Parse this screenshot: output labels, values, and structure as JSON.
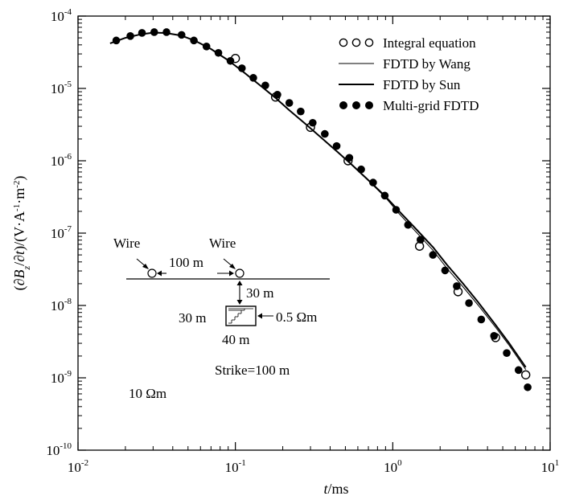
{
  "chart_data": {
    "type": "line",
    "xlabel": {
      "var": "t",
      "unit": "/ms"
    },
    "ylabel": {
      "pre": "(∂",
      "B": "B",
      "sub": "z",
      "mid": "/∂",
      "t": "t",
      "post": ")/(V·A",
      "s1": "-1",
      "m": "·m",
      "s2": "-2",
      "end": ")"
    },
    "xscale": "log",
    "yscale": "log",
    "xlim": [
      0.01,
      10
    ],
    "ylim": [
      1e-10,
      0.0001
    ],
    "x_ticks": [
      {
        "base": "10",
        "exp": "-2",
        "value": 0.01
      },
      {
        "base": "10",
        "exp": "-1",
        "value": 0.1
      },
      {
        "base": "10",
        "exp": "0",
        "value": 1
      },
      {
        "base": "10",
        "exp": "1",
        "value": 10
      }
    ],
    "y_ticks": [
      {
        "base": "10",
        "exp": "-4",
        "value": 0.0001
      },
      {
        "base": "10",
        "exp": "-5",
        "value": 1e-05
      },
      {
        "base": "10",
        "exp": "-6",
        "value": 1e-06
      },
      {
        "base": "10",
        "exp": "-7",
        "value": 1e-07
      },
      {
        "base": "10",
        "exp": "-8",
        "value": 1e-08
      },
      {
        "base": "10",
        "exp": "-9",
        "value": 1e-09
      },
      {
        "base": "10",
        "exp": "-10",
        "value": 1e-10
      }
    ],
    "grid": false,
    "legend_position": "top-right",
    "series": [
      {
        "name": "Integral equation",
        "style": "open-circle",
        "x": [
          0.1,
          0.18,
          0.3,
          0.52,
          1.48,
          2.6,
          4.5,
          7.0
        ],
        "y": [
          2.6e-05,
          7.6e-06,
          2.9e-06,
          1e-06,
          6.6e-08,
          1.55e-08,
          3.6e-09,
          1.1e-09
        ]
      },
      {
        "name": "FDTD by Wang",
        "style": "thin-line",
        "x": [
          0.016,
          0.02,
          0.025,
          0.03,
          0.036,
          0.045,
          0.055,
          0.07,
          0.09,
          0.11,
          0.14,
          0.18,
          0.22,
          0.28,
          0.35,
          0.45,
          0.55,
          0.7,
          0.9,
          1.1,
          1.4,
          1.8,
          2.2,
          2.8,
          3.5,
          4.5,
          5.5,
          7.0
        ],
        "y": [
          4.2e-05,
          5e-05,
          5.6e-05,
          5.9e-05,
          5.85e-05,
          5.4e-05,
          4.6e-05,
          3.5e-05,
          2.45e-05,
          1.75e-05,
          1.15e-05,
          7.4e-06,
          5e-06,
          3.2e-06,
          2.1e-06,
          1.3e-06,
          8.7e-07,
          5.3e-07,
          3.1e-07,
          1.85e-07,
          1.05e-07,
          5.8e-08,
          3.3e-08,
          1.8e-08,
          1e-08,
          5e-09,
          2.8e-09,
          1.3e-09
        ]
      },
      {
        "name": "FDTD by Sun",
        "style": "thick-line",
        "x": [
          0.016,
          0.02,
          0.025,
          0.03,
          0.036,
          0.045,
          0.055,
          0.07,
          0.09,
          0.11,
          0.14,
          0.18,
          0.22,
          0.28,
          0.35,
          0.45,
          0.55,
          0.7,
          0.9,
          1.1,
          1.4,
          1.8,
          2.2,
          2.8,
          3.5,
          4.5,
          5.5,
          7.0
        ],
        "y": [
          4.2e-05,
          5e-05,
          5.6e-05,
          5.9e-05,
          5.85e-05,
          5.4e-05,
          4.6e-05,
          3.5e-05,
          2.45e-05,
          1.75e-05,
          1.15e-05,
          7.4e-06,
          5e-06,
          3.2e-06,
          2.1e-06,
          1.3e-06,
          8.8e-07,
          5.4e-07,
          3.2e-07,
          2e-07,
          1.15e-07,
          6.4e-08,
          3.7e-08,
          2e-08,
          1.1e-08,
          5.4e-09,
          3e-09,
          1.4e-09
        ]
      },
      {
        "name": "Multi-grid FDTD",
        "style": "filled-circle",
        "x": [
          0.0175,
          0.0215,
          0.0255,
          0.0305,
          0.0365,
          0.0455,
          0.0545,
          0.0655,
          0.078,
          0.093,
          0.11,
          0.13,
          0.155,
          0.185,
          0.22,
          0.26,
          0.31,
          0.37,
          0.44,
          0.53,
          0.63,
          0.75,
          0.89,
          1.05,
          1.25,
          1.5,
          1.8,
          2.15,
          2.55,
          3.05,
          3.65,
          4.4,
          5.3,
          6.3,
          7.2
        ],
        "y": [
          4.6e-05,
          5.3e-05,
          5.85e-05,
          6e-05,
          6e-05,
          5.5e-05,
          4.6e-05,
          3.8e-05,
          3.1e-05,
          2.4e-05,
          1.9e-05,
          1.4e-05,
          1.1e-05,
          8.2e-06,
          6.3e-06,
          4.8e-06,
          3.35e-06,
          2.35e-06,
          1.6e-06,
          1.1e-06,
          7.6e-07,
          5e-07,
          3.3e-07,
          2.1e-07,
          1.3e-07,
          8.1e-08,
          5e-08,
          3.05e-08,
          1.85e-08,
          1.08e-08,
          6.4e-09,
          3.8e-09,
          2.2e-09,
          1.28e-09,
          7.4e-10
        ]
      }
    ]
  },
  "inset": {
    "wire_label_left": "Wire",
    "wire_label_right": "Wire",
    "spacing_label": "100 m",
    "depth_label": "30 m",
    "block_height_label": "30 m",
    "block_width_label": "40 m",
    "block_resistivity_label": "0.5 Ωm",
    "strike_label": "Strike=100 m",
    "background_resistivity_label": "10 Ωm"
  }
}
